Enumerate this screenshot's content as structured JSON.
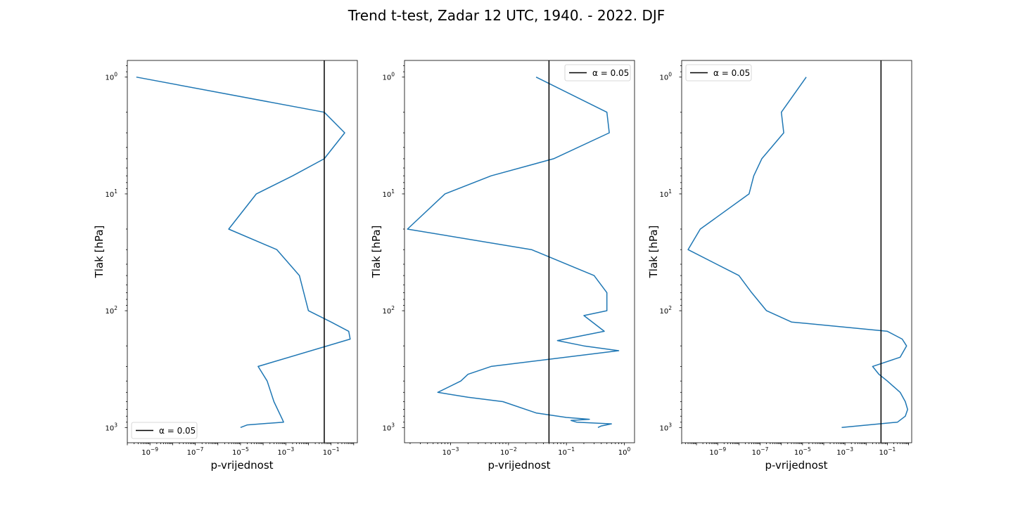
{
  "figure": {
    "title": "Trend t-test, Zadar 12 UTC, 1940. - 2022. DJF"
  },
  "chart_data": [
    {
      "type": "line",
      "xlabel": "p-vrijednost",
      "ylabel": "Tlak [hPa]",
      "xscale": "log",
      "yscale": "log",
      "yinverted": true,
      "xlim": [
        1e-10,
        1.45
      ],
      "ylim": [
        1350,
        0.72
      ],
      "xticks": [
        {
          "v": 1e-09,
          "b": "10",
          "e": "−9"
        },
        {
          "v": 1e-07,
          "b": "10",
          "e": "−7"
        },
        {
          "v": 1e-05,
          "b": "10",
          "e": "−5"
        },
        {
          "v": 0.001,
          "b": "10",
          "e": "−3"
        },
        {
          "v": 0.1,
          "b": "10",
          "e": "−1"
        }
      ],
      "yticks": [
        {
          "v": 1,
          "b": "10",
          "e": "0"
        },
        {
          "v": 10,
          "b": "10",
          "e": "1"
        },
        {
          "v": 100,
          "b": "10",
          "e": "2"
        },
        {
          "v": 1000,
          "b": "10",
          "e": "3"
        }
      ],
      "grid": false,
      "threshold": 0.05,
      "legend": {
        "label": "α = 0.05",
        "loc": "lower-left"
      },
      "series": [
        {
          "color": "#1f77b4",
          "points": [
            [
              2.5e-10,
              1
            ],
            [
              0.05,
              2
            ],
            [
              0.4,
              3
            ],
            [
              0.05,
              5
            ],
            [
              0.002,
              7
            ],
            [
              5e-05,
              10
            ],
            [
              3e-06,
              20
            ],
            [
              0.0004,
              30
            ],
            [
              0.004,
              50
            ],
            [
              0.01,
              100
            ],
            [
              0.1,
              125
            ],
            [
              0.6,
              150
            ],
            [
              0.7,
              175
            ],
            [
              6e-05,
              300
            ],
            [
              0.00015,
              400
            ],
            [
              0.0003,
              600
            ],
            [
              0.0007,
              850
            ],
            [
              0.0008,
              900
            ],
            [
              2e-05,
              950
            ],
            [
              1e-05,
              1000
            ]
          ]
        }
      ]
    },
    {
      "type": "line",
      "xlabel": "p-vrijednost",
      "ylabel": "Tlak [hPa]",
      "xscale": "log",
      "yscale": "log",
      "yinverted": true,
      "xlim": [
        0.00016,
        1.5
      ],
      "ylim": [
        1350,
        0.72
      ],
      "xticks": [
        {
          "v": 0.001,
          "b": "10",
          "e": "−3"
        },
        {
          "v": 0.01,
          "b": "10",
          "e": "−2"
        },
        {
          "v": 0.1,
          "b": "10",
          "e": "−1"
        },
        {
          "v": 1,
          "b": "10",
          "e": "0"
        }
      ],
      "yticks": [
        {
          "v": 1,
          "b": "10",
          "e": "0"
        },
        {
          "v": 10,
          "b": "10",
          "e": "1"
        },
        {
          "v": 100,
          "b": "10",
          "e": "2"
        },
        {
          "v": 1000,
          "b": "10",
          "e": "3"
        }
      ],
      "grid": false,
      "threshold": 0.05,
      "legend": {
        "label": "α = 0.05",
        "loc": "upper-right"
      },
      "series": [
        {
          "color": "#1f77b4",
          "points": [
            [
              0.03,
              1
            ],
            [
              0.5,
              2
            ],
            [
              0.55,
              3
            ],
            [
              0.06,
              5
            ],
            [
              0.005,
              7
            ],
            [
              0.0008,
              10
            ],
            [
              0.00018,
              20
            ],
            [
              0.025,
              30
            ],
            [
              0.3,
              50
            ],
            [
              0.5,
              70
            ],
            [
              0.5,
              100
            ],
            [
              0.2,
              110
            ],
            [
              0.45,
              150
            ],
            [
              0.07,
              180
            ],
            [
              0.2,
              200
            ],
            [
              0.8,
              220
            ],
            [
              0.005,
              300
            ],
            [
              0.002,
              350
            ],
            [
              0.0015,
              400
            ],
            [
              0.0006,
              500
            ],
            [
              0.002,
              550
            ],
            [
              0.008,
              600
            ],
            [
              0.03,
              750
            ],
            [
              0.1,
              820
            ],
            [
              0.25,
              850
            ],
            [
              0.12,
              870
            ],
            [
              0.15,
              900
            ],
            [
              0.6,
              930
            ],
            [
              0.4,
              970
            ],
            [
              0.35,
              1000
            ]
          ]
        }
      ]
    },
    {
      "type": "line",
      "xlabel": "p-vrijednost",
      "ylabel": "Tlak [hPa]",
      "xscale": "log",
      "yscale": "log",
      "yinverted": true,
      "xlim": [
        2e-11,
        1.4
      ],
      "ylim": [
        1350,
        0.72
      ],
      "xticks": [
        {
          "v": 1e-09,
          "b": "10",
          "e": "−9"
        },
        {
          "v": 1e-07,
          "b": "10",
          "e": "−7"
        },
        {
          "v": 1e-05,
          "b": "10",
          "e": "−5"
        },
        {
          "v": 0.001,
          "b": "10",
          "e": "−3"
        },
        {
          "v": 0.1,
          "b": "10",
          "e": "−1"
        }
      ],
      "yticks": [
        {
          "v": 1,
          "b": "10",
          "e": "0"
        },
        {
          "v": 10,
          "b": "10",
          "e": "1"
        },
        {
          "v": 100,
          "b": "10",
          "e": "2"
        },
        {
          "v": 1000,
          "b": "10",
          "e": "3"
        }
      ],
      "grid": false,
      "threshold": 0.05,
      "legend": {
        "label": "α = 0.05",
        "loc": "upper-left"
      },
      "series": [
        {
          "color": "#1f77b4",
          "points": [
            [
              1.5e-05,
              1
            ],
            [
              1e-06,
              2
            ],
            [
              1.3e-06,
              3
            ],
            [
              1.2e-07,
              5
            ],
            [
              5e-08,
              7
            ],
            [
              3e-08,
              10
            ],
            [
              1.5e-10,
              20
            ],
            [
              4e-11,
              30
            ],
            [
              1e-08,
              50
            ],
            [
              4e-08,
              70
            ],
            [
              2e-07,
              100
            ],
            [
              3e-06,
              125
            ],
            [
              0.1,
              150
            ],
            [
              0.5,
              175
            ],
            [
              0.8,
              200
            ],
            [
              0.4,
              250
            ],
            [
              0.02,
              300
            ],
            [
              0.04,
              350
            ],
            [
              0.1,
              400
            ],
            [
              0.4,
              500
            ],
            [
              0.7,
              600
            ],
            [
              0.9,
              700
            ],
            [
              0.7,
              800
            ],
            [
              0.3,
              900
            ],
            [
              0.0007,
              1000
            ]
          ]
        }
      ]
    }
  ]
}
